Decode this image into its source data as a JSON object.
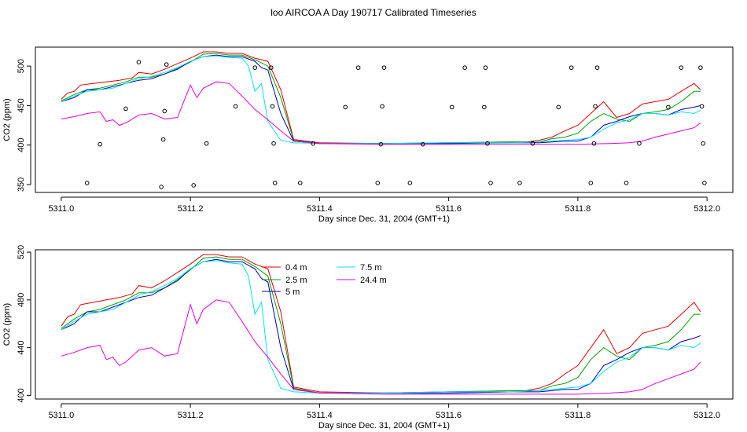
{
  "title": "loo AIRCOA A  Day 190717  Calibrated Timeseries",
  "colors": {
    "0.4 m": "#e00000",
    "2.5 m": "#00a000",
    "5 m": "#0000c0",
    "7.5 m": "#00e5ee",
    "24.4 m": "#e000e0"
  },
  "chart_data": [
    {
      "type": "line",
      "xlabel": "Day since Dec. 31, 2004 (GMT+1)",
      "ylabel": "CO2 (ppm)",
      "xlim": [
        5310.96,
        5312.04
      ],
      "ylim": [
        340,
        524
      ],
      "xticks": [
        5311.0,
        5311.2,
        5311.4,
        5311.6,
        5311.8,
        5312.0
      ],
      "xtick_labels": [
        "5311.0",
        "5311.2",
        "5311.4",
        "5311.6",
        "5311.8",
        "5312.0"
      ],
      "yticks": [
        350,
        400,
        450,
        500
      ],
      "ytick_labels": [
        "350",
        "400",
        "450",
        "500"
      ],
      "legend": null,
      "series": [
        {
          "key": "0.4 m",
          "x": [
            5311.0,
            5311.01,
            5311.02,
            5311.03,
            5311.05,
            5311.07,
            5311.09,
            5311.11,
            5311.12,
            5311.14,
            5311.16,
            5311.18,
            5311.2,
            5311.22,
            5311.24,
            5311.26,
            5311.28,
            5311.3,
            5311.32,
            5311.34,
            5311.36,
            5311.4,
            5311.5,
            5311.6,
            5311.7,
            5311.72,
            5311.74,
            5311.76,
            5311.78,
            5311.8,
            5311.82,
            5311.84,
            5311.86,
            5311.88,
            5311.9,
            5311.92,
            5311.94,
            5311.96,
            5311.98,
            5311.99
          ],
          "y": [
            458,
            466,
            468,
            476,
            478,
            480,
            482,
            485,
            492,
            490,
            496,
            503,
            510,
            518,
            518,
            516,
            516,
            510,
            506,
            470,
            407,
            403,
            402,
            403,
            404,
            404,
            406,
            410,
            418,
            425,
            440,
            455,
            435,
            440,
            452,
            455,
            458,
            468,
            478,
            470
          ]
        },
        {
          "key": "2.5 m",
          "x": [
            5311.0,
            5311.02,
            5311.04,
            5311.06,
            5311.08,
            5311.1,
            5311.12,
            5311.14,
            5311.16,
            5311.18,
            5311.2,
            5311.22,
            5311.24,
            5311.26,
            5311.28,
            5311.3,
            5311.32,
            5311.34,
            5311.36,
            5311.4,
            5311.5,
            5311.6,
            5311.7,
            5311.74,
            5311.76,
            5311.78,
            5311.8,
            5311.82,
            5311.84,
            5311.86,
            5311.88,
            5311.9,
            5311.92,
            5311.94,
            5311.96,
            5311.98,
            5311.99
          ],
          "y": [
            456,
            464,
            470,
            472,
            476,
            480,
            486,
            486,
            490,
            497,
            505,
            515,
            516,
            514,
            514,
            508,
            500,
            460,
            406,
            402,
            402,
            403,
            404,
            404,
            408,
            410,
            415,
            430,
            440,
            433,
            430,
            440,
            442,
            445,
            455,
            468,
            468
          ]
        },
        {
          "key": "5 m",
          "x": [
            5311.0,
            5311.02,
            5311.04,
            5311.06,
            5311.08,
            5311.1,
            5311.12,
            5311.14,
            5311.16,
            5311.18,
            5311.2,
            5311.22,
            5311.24,
            5311.26,
            5311.28,
            5311.3,
            5311.31,
            5311.32,
            5311.34,
            5311.36,
            5311.4,
            5311.5,
            5311.6,
            5311.7,
            5311.74,
            5311.76,
            5311.78,
            5311.8,
            5311.82,
            5311.84,
            5311.86,
            5311.88,
            5311.9,
            5311.92,
            5311.94,
            5311.96,
            5311.98,
            5311.99
          ],
          "y": [
            455,
            460,
            470,
            470,
            474,
            478,
            482,
            484,
            490,
            496,
            506,
            512,
            514,
            512,
            512,
            506,
            498,
            495,
            440,
            405,
            402,
            402,
            402,
            403,
            403,
            404,
            405,
            405,
            410,
            425,
            430,
            436,
            440,
            440,
            438,
            445,
            448,
            450
          ]
        },
        {
          "key": "7.5 m",
          "x": [
            5311.0,
            5311.02,
            5311.04,
            5311.06,
            5311.08,
            5311.1,
            5311.12,
            5311.14,
            5311.16,
            5311.18,
            5311.2,
            5311.22,
            5311.24,
            5311.26,
            5311.28,
            5311.29,
            5311.3,
            5311.31,
            5311.32,
            5311.34,
            5311.36,
            5311.4,
            5311.5,
            5311.6,
            5311.7,
            5311.74,
            5311.76,
            5311.78,
            5311.8,
            5311.82,
            5311.84,
            5311.86,
            5311.88,
            5311.9,
            5311.92,
            5311.94,
            5311.96,
            5311.98,
            5311.99
          ],
          "y": [
            455,
            462,
            468,
            470,
            472,
            478,
            484,
            487,
            492,
            498,
            506,
            512,
            513,
            511,
            510,
            500,
            468,
            478,
            430,
            406,
            403,
            402,
            402,
            403,
            403,
            404,
            405,
            406,
            407,
            410,
            420,
            428,
            432,
            440,
            440,
            438,
            442,
            440,
            444
          ]
        },
        {
          "key": "24.4 m",
          "x": [
            5311.0,
            5311.02,
            5311.04,
            5311.06,
            5311.07,
            5311.08,
            5311.09,
            5311.1,
            5311.12,
            5311.14,
            5311.16,
            5311.18,
            5311.2,
            5311.21,
            5311.22,
            5311.24,
            5311.26,
            5311.28,
            5311.3,
            5311.32,
            5311.34,
            5311.36,
            5311.4,
            5311.5,
            5311.6,
            5311.7,
            5311.8,
            5311.85,
            5311.88,
            5311.9,
            5311.92,
            5311.94,
            5311.96,
            5311.98,
            5311.99
          ],
          "y": [
            433,
            436,
            440,
            442,
            430,
            432,
            425,
            428,
            438,
            440,
            433,
            435,
            476,
            460,
            472,
            480,
            478,
            462,
            445,
            432,
            418,
            405,
            402,
            401,
            401,
            401,
            401,
            402,
            403,
            405,
            410,
            414,
            418,
            422,
            428
          ]
        },
        {
          "key": "outliers",
          "marker": "circle",
          "points": [
            [
              5311.04,
              352
            ],
            [
              5311.06,
              401
            ],
            [
              5311.1,
              446
            ],
            [
              5311.12,
              505
            ],
            [
              5311.155,
              347
            ],
            [
              5311.158,
              407
            ],
            [
              5311.16,
              443
            ],
            [
              5311.163,
              502
            ],
            [
              5311.205,
              349
            ],
            [
              5311.225,
              402
            ],
            [
              5311.27,
              449
            ],
            [
              5311.3,
              498
            ],
            [
              5311.325,
              498
            ],
            [
              5311.327,
              449
            ],
            [
              5311.329,
              402
            ],
            [
              5311.331,
              352
            ],
            [
              5311.37,
              352
            ],
            [
              5311.39,
              402
            ],
            [
              5311.44,
              448
            ],
            [
              5311.46,
              498
            ],
            [
              5311.49,
              352
            ],
            [
              5311.495,
              401
            ],
            [
              5311.497,
              449
            ],
            [
              5311.5,
              498
            ],
            [
              5311.54,
              352
            ],
            [
              5311.56,
              401
            ],
            [
              5311.605,
              448
            ],
            [
              5311.625,
              498
            ],
            [
              5311.655,
              448
            ],
            [
              5311.66,
              402
            ],
            [
              5311.657,
              498
            ],
            [
              5311.665,
              352
            ],
            [
              5311.71,
              352
            ],
            [
              5311.73,
              402
            ],
            [
              5311.77,
              448
            ],
            [
              5311.79,
              498
            ],
            [
              5311.82,
              352
            ],
            [
              5311.825,
              402
            ],
            [
              5311.827,
              449
            ],
            [
              5311.83,
              498
            ],
            [
              5311.875,
              352
            ],
            [
              5311.895,
              402
            ],
            [
              5311.94,
              448
            ],
            [
              5311.96,
              498
            ],
            [
              5311.99,
              498
            ],
            [
              5311.992,
              449
            ],
            [
              5311.994,
              402
            ],
            [
              5311.996,
              352
            ]
          ]
        }
      ]
    },
    {
      "type": "line",
      "xlabel": "Day since Dec. 31, 2004 (GMT+1)",
      "ylabel": "CO2 (ppm)",
      "xlim": [
        5310.96,
        5312.04
      ],
      "ylim": [
        397,
        522
      ],
      "xticks": [
        5311.0,
        5311.2,
        5311.4,
        5311.6,
        5311.8,
        5312.0
      ],
      "xtick_labels": [
        "5311.0",
        "5311.2",
        "5311.4",
        "5311.6",
        "5311.8",
        "5312.0"
      ],
      "yticks": [
        400,
        440,
        480,
        520
      ],
      "ytick_labels": [
        "400",
        "440",
        "480",
        "520"
      ],
      "legend": {
        "position": "top-center",
        "entries": [
          "0.4 m",
          "2.5 m",
          "5 m",
          "7.5 m",
          "24.4 m"
        ]
      },
      "series": [
        {
          "key": "0.4 m",
          "ref": 0
        },
        {
          "key": "2.5 m",
          "ref": 1
        },
        {
          "key": "5 m",
          "ref": 2
        },
        {
          "key": "7.5 m",
          "ref": 3
        },
        {
          "key": "24.4 m",
          "ref": 4
        }
      ]
    }
  ]
}
